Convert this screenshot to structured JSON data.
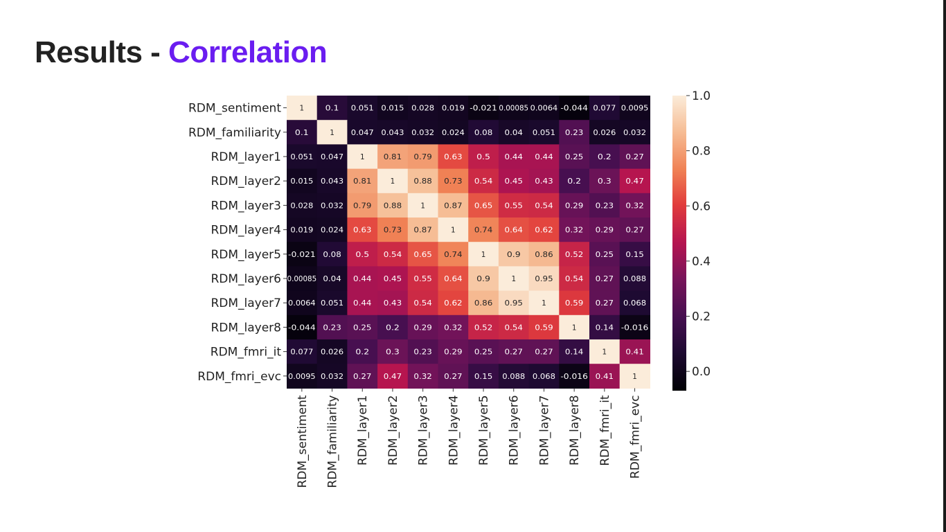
{
  "slide": {
    "title_main": "Results - ",
    "title_accent": "Correlation",
    "accent_color": "#6a1df0"
  },
  "chart_data": {
    "type": "heatmap",
    "colormap": "inferno-like",
    "labels": [
      "RDM_sentiment",
      "RDM_familiarity",
      "RDM_layer1",
      "RDM_layer2",
      "RDM_layer3",
      "RDM_layer4",
      "RDM_layer5",
      "RDM_layer6",
      "RDM_layer7",
      "RDM_layer8",
      "RDM_fmri_it",
      "RDM_fmri_evc"
    ],
    "values": [
      [
        1,
        0.1,
        0.051,
        0.015,
        0.028,
        0.019,
        -0.021,
        0.00085,
        0.0064,
        -0.044,
        0.077,
        0.0095
      ],
      [
        0.1,
        1,
        0.047,
        0.043,
        0.032,
        0.024,
        0.08,
        0.04,
        0.051,
        0.23,
        0.026,
        0.032
      ],
      [
        0.051,
        0.047,
        1,
        0.81,
        0.79,
        0.63,
        0.5,
        0.44,
        0.44,
        0.25,
        0.2,
        0.27
      ],
      [
        0.015,
        0.043,
        0.81,
        1,
        0.88,
        0.73,
        0.54,
        0.45,
        0.43,
        0.2,
        0.3,
        0.47
      ],
      [
        0.028,
        0.032,
        0.79,
        0.88,
        1,
        0.87,
        0.65,
        0.55,
        0.54,
        0.29,
        0.23,
        0.32
      ],
      [
        0.019,
        0.024,
        0.63,
        0.73,
        0.87,
        1,
        0.74,
        0.64,
        0.62,
        0.32,
        0.29,
        0.27
      ],
      [
        -0.021,
        0.08,
        0.5,
        0.54,
        0.65,
        0.74,
        1,
        0.9,
        0.86,
        0.52,
        0.25,
        0.15
      ],
      [
        0.00085,
        0.04,
        0.44,
        0.45,
        0.55,
        0.64,
        0.9,
        1,
        0.95,
        0.54,
        0.27,
        0.088
      ],
      [
        0.0064,
        0.051,
        0.44,
        0.43,
        0.54,
        0.62,
        0.86,
        0.95,
        1,
        0.59,
        0.27,
        0.068
      ],
      [
        -0.044,
        0.23,
        0.25,
        0.2,
        0.29,
        0.32,
        0.52,
        0.54,
        0.59,
        1,
        0.14,
        -0.016
      ],
      [
        0.077,
        0.026,
        0.2,
        0.3,
        0.23,
        0.29,
        0.25,
        0.27,
        0.27,
        0.14,
        1,
        0.41
      ],
      [
        0.0095,
        0.032,
        0.27,
        0.47,
        0.32,
        0.27,
        0.15,
        0.088,
        0.068,
        -0.016,
        0.41,
        1
      ]
    ],
    "value_labels": [
      [
        "1",
        "0.1",
        "0.051",
        "0.015",
        "0.028",
        "0.019",
        "-0.021",
        "0.00085",
        "0.0064",
        "-0.044",
        "0.077",
        "0.0095"
      ],
      [
        "0.1",
        "1",
        "0.047",
        "0.043",
        "0.032",
        "0.024",
        "0.08",
        "0.04",
        "0.051",
        "0.23",
        "0.026",
        "0.032"
      ],
      [
        "0.051",
        "0.047",
        "1",
        "0.81",
        "0.79",
        "0.63",
        "0.5",
        "0.44",
        "0.44",
        "0.25",
        "0.2",
        "0.27"
      ],
      [
        "0.015",
        "0.043",
        "0.81",
        "1",
        "0.88",
        "0.73",
        "0.54",
        "0.45",
        "0.43",
        "0.2",
        "0.3",
        "0.47"
      ],
      [
        "0.028",
        "0.032",
        "0.79",
        "0.88",
        "1",
        "0.87",
        "0.65",
        "0.55",
        "0.54",
        "0.29",
        "0.23",
        "0.32"
      ],
      [
        "0.019",
        "0.024",
        "0.63",
        "0.73",
        "0.87",
        "1",
        "0.74",
        "0.64",
        "0.62",
        "0.32",
        "0.29",
        "0.27"
      ],
      [
        "-0.021",
        "0.08",
        "0.5",
        "0.54",
        "0.65",
        "0.74",
        "1",
        "0.9",
        "0.86",
        "0.52",
        "0.25",
        "0.15"
      ],
      [
        "0.00085",
        "0.04",
        "0.44",
        "0.45",
        "0.55",
        "0.64",
        "0.9",
        "1",
        "0.95",
        "0.54",
        "0.27",
        "0.088"
      ],
      [
        "0.0064",
        "0.051",
        "0.44",
        "0.43",
        "0.54",
        "0.62",
        "0.86",
        "0.95",
        "1",
        "0.59",
        "0.27",
        "0.068"
      ],
      [
        "-0.044",
        "0.23",
        "0.25",
        "0.2",
        "0.29",
        "0.32",
        "0.52",
        "0.54",
        "0.59",
        "1",
        "0.14",
        "-0.016"
      ],
      [
        "0.077",
        "0.026",
        "0.2",
        "0.3",
        "0.23",
        "0.29",
        "0.25",
        "0.27",
        "0.27",
        "0.14",
        "1",
        "0.41"
      ],
      [
        "0.0095",
        "0.032",
        "0.27",
        "0.47",
        "0.32",
        "0.27",
        "0.15",
        "0.088",
        "0.068",
        "-0.016",
        "0.41",
        "1"
      ]
    ],
    "colorbar": {
      "range": [
        -0.07,
        1.0
      ],
      "ticks": [
        0.0,
        0.2,
        0.4,
        0.6,
        0.8,
        1.0
      ],
      "tick_labels": [
        "0.0",
        "0.2",
        "0.4",
        "0.6",
        "0.8",
        "1.0"
      ]
    }
  }
}
